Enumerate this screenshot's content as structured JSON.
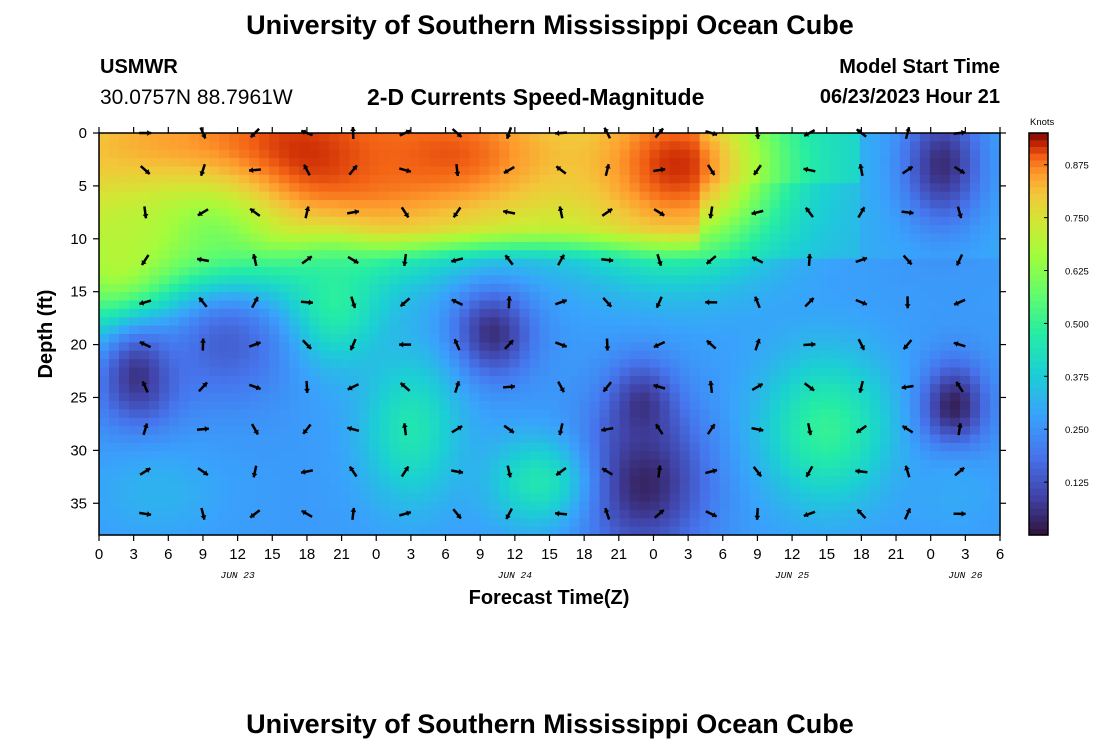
{
  "page": {
    "title": "University of Southern Mississippi Ocean Cube",
    "footer_title": "University of Southern Mississippi Ocean Cube",
    "station": "USMWR",
    "coordinates": "30.0757N  88.7961W",
    "subtitle": "2-D Currents Speed-Magnitude",
    "model_start_label": "Model Start Time",
    "model_start_time": "06/23/2023 Hour 21"
  },
  "chart_data": {
    "type": "heatmap",
    "title": "2-D Currents Speed-Magnitude",
    "xlabel": "Forecast Time(Z)",
    "ylabel": "Depth (ft)",
    "x_tick_labels": [
      "0",
      "3",
      "6",
      "9",
      "12",
      "15",
      "18",
      "21",
      "0",
      "3",
      "6",
      "9",
      "12",
      "15",
      "18",
      "21",
      "0",
      "3",
      "6",
      "9",
      "12",
      "15",
      "18",
      "21",
      "0",
      "3",
      "6"
    ],
    "x_range_hours": [
      0,
      78
    ],
    "date_labels": [
      {
        "label": "JUN 23",
        "hour": 12
      },
      {
        "label": "JUN 24",
        "hour": 36
      },
      {
        "label": "JUN 25",
        "hour": 60
      },
      {
        "label": "JUN 26",
        "hour": 75
      }
    ],
    "y_ticks": [
      0,
      5,
      10,
      15,
      20,
      25,
      30,
      35
    ],
    "ylim": [
      0,
      38
    ],
    "y_inverted": true,
    "colorbar": {
      "unit": "Knots",
      "ticks": [
        "0.875",
        "0.750",
        "0.625",
        "0.500",
        "0.375",
        "0.250",
        "0.125"
      ],
      "tick_values": [
        0.875,
        0.75,
        0.625,
        0.5,
        0.375,
        0.25,
        0.125
      ],
      "range": [
        0,
        0.95
      ]
    },
    "speed_blobs": [
      {
        "hour": 5,
        "depth": 3,
        "speed": 0.85,
        "sx": 10,
        "sy": 6
      },
      {
        "hour": 18,
        "depth": 3,
        "speed": 0.95,
        "sx": 8,
        "sy": 6
      },
      {
        "hour": 30,
        "depth": 2,
        "speed": 0.9,
        "sx": 9,
        "sy": 5
      },
      {
        "hour": 50,
        "depth": 3,
        "speed": 0.92,
        "sx": 6,
        "sy": 6
      },
      {
        "hour": 9,
        "depth": 10,
        "speed": 0.6,
        "sx": 5,
        "sy": 4
      },
      {
        "hour": 2,
        "depth": 12,
        "speed": 0.7,
        "sx": 4,
        "sy": 5
      },
      {
        "hour": 20,
        "depth": 16,
        "speed": 0.5,
        "sx": 3,
        "sy": 4
      },
      {
        "hour": 3.5,
        "depth": 23,
        "speed": 0.05,
        "sx": 2.5,
        "sy": 3.5
      },
      {
        "hour": 11,
        "depth": 20,
        "speed": 0.15,
        "sx": 4,
        "sy": 4
      },
      {
        "hour": 34,
        "depth": 19,
        "speed": 0.05,
        "sx": 2.5,
        "sy": 3
      },
      {
        "hour": 47,
        "depth": 33,
        "speed": 0.03,
        "sx": 4,
        "sy": 5
      },
      {
        "hour": 47,
        "depth": 26,
        "speed": 0.06,
        "sx": 2,
        "sy": 3
      },
      {
        "hour": 27,
        "depth": 28,
        "speed": 0.45,
        "sx": 3,
        "sy": 5
      },
      {
        "hour": 38,
        "depth": 33,
        "speed": 0.45,
        "sx": 3,
        "sy": 3
      },
      {
        "hour": 63,
        "depth": 28,
        "speed": 0.5,
        "sx": 4,
        "sy": 5
      },
      {
        "hour": 74,
        "depth": 26,
        "speed": 0.02,
        "sx": 2,
        "sy": 3
      },
      {
        "hour": 73,
        "depth": 3,
        "speed": 0.05,
        "sx": 2.5,
        "sy": 4
      },
      {
        "hour": 5,
        "depth": 34,
        "speed": 0.32,
        "sx": 4,
        "sy": 3
      },
      {
        "hour": 74,
        "depth": 34,
        "speed": 0.3,
        "sx": 3,
        "sy": 3
      }
    ],
    "vector_rows_depths": [
      0,
      3.5,
      7.5,
      12,
      16,
      20,
      24,
      28,
      32,
      36
    ],
    "vector_column_hours": [
      4,
      9,
      13.5,
      18,
      22,
      26.5,
      31,
      35.5,
      40,
      44,
      48.5,
      53,
      57,
      61.5,
      66,
      70,
      74.5
    ]
  }
}
